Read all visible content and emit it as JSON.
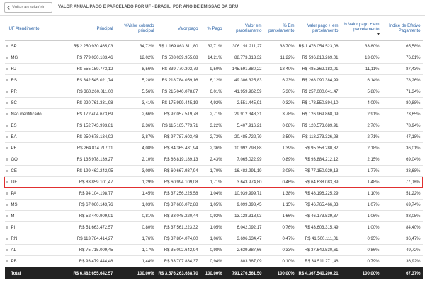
{
  "header": {
    "back_button": "Voltar ao relatório",
    "title": "VALOR ANUAL PAGO E PARCELADO POR UF - BRASIL, POR ANO DE EMISSÃO DA GRU"
  },
  "table": {
    "columns": [
      "UF Atendimento",
      "Principal",
      "%Valor cobrado principal",
      "Valor pago",
      "% Pago",
      "Valor em parcelamento",
      "% Em parcelamento",
      "Valor pago + em parcelamento",
      "% Valor pago + em parcelamento",
      "Índice de Efetivo Pagamento"
    ],
    "rows": [
      [
        "SP",
        "R$ 2.250.930.465,03",
        "34,72%",
        "R$ 1.169.863.311,80",
        "32,71%",
        "306.191.211,27",
        "38,70%",
        "R$ 1.476.054.523,08",
        "33,80%",
        "65,58%"
      ],
      [
        "MG",
        "R$ 779.030.183,46",
        "12,02%",
        "R$ 508.039.955,68",
        "14,21%",
        "88.773.313,32",
        "11,22%",
        "R$ 596.813.269,01",
        "13,66%",
        "76,61%"
      ],
      [
        "RJ",
        "R$ 555.159.773,12",
        "8,56%",
        "R$ 339.770.302,79",
        "9,50%",
        "145.591.880,22",
        "18,40%",
        "R$ 485.362.183,01",
        "11,11%",
        "87,43%"
      ],
      [
        "RS",
        "R$ 342.545.021,74",
        "5,28%",
        "R$ 218.784.059,16",
        "6,12%",
        "49.306.325,83",
        "6,23%",
        "R$ 268.090.384,99",
        "6,14%",
        "78,26%"
      ],
      [
        "PR",
        "R$ 360.260.811,00",
        "5,56%",
        "R$ 215.040.078,87",
        "6,01%",
        "41.959.962,59",
        "5,30%",
        "R$ 257.000.041,47",
        "5,88%",
        "71,34%"
      ],
      [
        "SC",
        "R$ 220.761.331,98",
        "3,41%",
        "R$ 175.999.445,19",
        "4,92%",
        "2.551.445,91",
        "0,32%",
        "R$ 178.550.894,10",
        "4,09%",
        "80,88%"
      ],
      [
        "Não identificado",
        "R$ 172.404.673,69",
        "2,66%",
        "R$ 97.057.519,78",
        "2,71%",
        "29.912.348,31",
        "3,78%",
        "R$ 126.969.868,09",
        "2,91%",
        "73,65%"
      ],
      [
        "ES",
        "R$ 152.743.993,81",
        "2,36%",
        "R$ 115.165.773,71",
        "3,22%",
        "5.407.916,21",
        "0,68%",
        "R$ 120.573.689,91",
        "2,76%",
        "78,94%"
      ],
      [
        "BA",
        "R$ 250.678.134,92",
        "3,87%",
        "R$ 97.787.603,48",
        "2,73%",
        "20.485.722,79",
        "2,59%",
        "R$ 118.273.326,28",
        "2,71%",
        "47,18%"
      ],
      [
        "PE",
        "R$ 264.814.217,11",
        "4,08%",
        "R$ 84.365.481,94",
        "2,36%",
        "10.992.798,88",
        "1,39%",
        "R$ 95.358.280,82",
        "2,18%",
        "36,01%"
      ],
      [
        "GO",
        "R$ 135.978.139,27",
        "2,10%",
        "R$ 86.819.189,13",
        "2,43%",
        "7.065.022,99",
        "0,89%",
        "R$ 93.884.212,12",
        "2,15%",
        "69,04%"
      ],
      [
        "CE",
        "R$ 199.462.242,05",
        "3,08%",
        "R$ 60.667.937,94",
        "1,70%",
        "16.482.991,19",
        "2,08%",
        "R$ 77.150.929,13",
        "1,77%",
        "38,68%"
      ],
      [
        "DF",
        "R$ 83.859.101,47",
        "1,29%",
        "R$ 60.994.109,08",
        "1,71%",
        "3.643.974,80",
        "0,46%",
        "R$ 64.638.083,89",
        "1,48%",
        "77,08%"
      ],
      [
        "PA",
        "R$ 94.104.198,77",
        "1,45%",
        "R$ 37.256.225,58",
        "1,04%",
        "10.939.999,71",
        "1,38%",
        "R$ 48.196.225,29",
        "1,10%",
        "51,22%"
      ],
      [
        "MS",
        "R$ 67.060.143,76",
        "1,03%",
        "R$ 37.666.072,88",
        "1,05%",
        "9.099.393,45",
        "1,15%",
        "R$ 46.765.466,33",
        "1,07%",
        "69,74%"
      ],
      [
        "MT",
        "R$ 52.440.909,91",
        "0,81%",
        "R$ 33.045.220,44",
        "0,92%",
        "13.128.318,93",
        "1,66%",
        "R$ 46.173.539,37",
        "1,06%",
        "88,05%"
      ],
      [
        "PI",
        "R$ 51.663.472,57",
        "0,80%",
        "R$ 37.561.223,32",
        "1,05%",
        "6.042.092,17",
        "0,76%",
        "R$ 43.603.315,49",
        "1,00%",
        "84,40%"
      ],
      [
        "RN",
        "R$ 113.784.414,27",
        "1,76%",
        "R$ 37.804.074,60",
        "1,06%",
        "3.696.634,47",
        "0,47%",
        "R$ 41.500.111,01",
        "0,95%",
        "36,47%"
      ],
      [
        "AL",
        "R$ 75.715.009,45",
        "1,17%",
        "R$ 35.002.642,94",
        "0,98%",
        "2.639.887,66",
        "0,33%",
        "R$ 37.642.530,61",
        "0,86%",
        "49,72%"
      ],
      [
        "PB",
        "R$ 93.479.444,48",
        "1,44%",
        "R$ 33.707.884,37",
        "0,94%",
        "803.387,09",
        "0,10%",
        "R$ 34.511.271,46",
        "0,79%",
        "36,92%"
      ]
    ],
    "total": [
      "Total",
      "R$ 6.482.655.642,57",
      "100,00%",
      "R$ 3.576.263.638,70",
      "100,00%",
      "791.276.561,50",
      "100,00%",
      "R$ 4.367.540.200,21",
      "100,00%",
      "67,37%"
    ]
  }
}
